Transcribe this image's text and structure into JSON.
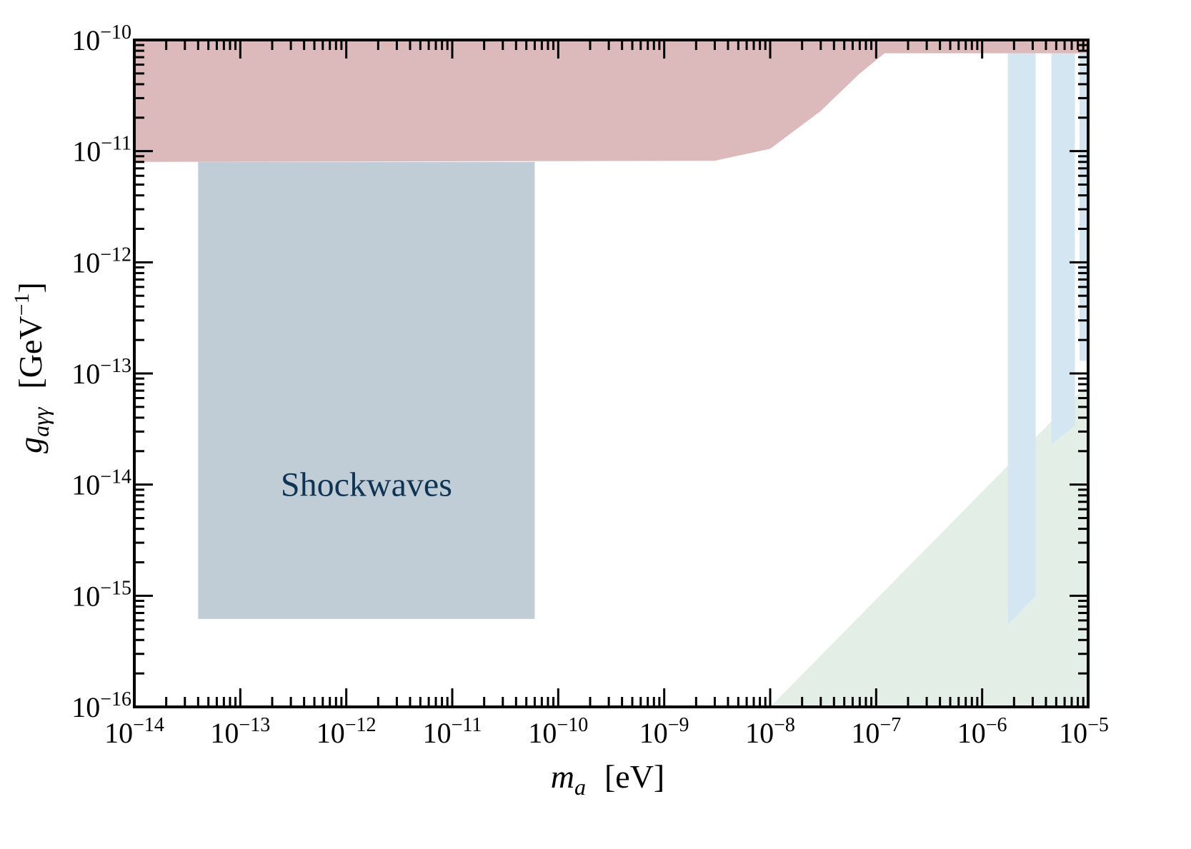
{
  "chart_data": {
    "type": "area",
    "x_scale": "log",
    "y_scale": "log",
    "xlim": [
      1e-14,
      1e-05
    ],
    "ylim": [
      1e-16,
      1e-10
    ],
    "x_tick_exponents": [
      -14,
      -13,
      -12,
      -11,
      -10,
      -9,
      -8,
      -7,
      -6,
      -5
    ],
    "y_tick_exponents": [
      -16,
      -15,
      -14,
      -13,
      -12,
      -11,
      -10
    ],
    "tick_base": "10",
    "xlabel": {
      "main": "m",
      "sub": "a",
      "unit": "[eV]"
    },
    "ylabel": {
      "main": "g",
      "sub": "aγγ",
      "unit_open": "[GeV",
      "unit_exp": "−1",
      "unit_close": "]"
    },
    "grid": false,
    "regions": [
      {
        "id": "upper-bound",
        "color": "#dcb9ba",
        "polygon": [
          [
            1e-14,
            8e-12
          ],
          [
            3e-09,
            8.2e-12
          ],
          [
            1e-08,
            1.05e-11
          ],
          [
            3e-08,
            2.3e-11
          ],
          [
            7e-08,
            5e-11
          ],
          [
            1.2e-07,
            7.6e-11
          ],
          [
            1e-05,
            7.6e-11
          ],
          [
            1e-05,
            1e-10
          ],
          [
            1e-14,
            1e-10
          ]
        ]
      },
      {
        "id": "shockwaves",
        "label": "Shockwaves",
        "label_color": "#0f3353",
        "color": "#c0ccd6",
        "polygon": [
          [
            4e-14,
            6.2e-16
          ],
          [
            6e-11,
            6.2e-16
          ],
          [
            6e-11,
            8e-12
          ],
          [
            4e-14,
            8e-12
          ]
        ]
      },
      {
        "id": "green-wedge",
        "color": "#e3eee6",
        "polygon": [
          [
            1e-08,
            1e-16
          ],
          [
            1e-05,
            1e-16
          ],
          [
            1e-05,
            8e-14
          ]
        ]
      },
      {
        "id": "blue-band-1",
        "color": "#d4e6f1",
        "polygon": [
          [
            1.75e-06,
            5.5e-16
          ],
          [
            3.2e-06,
            1e-15
          ],
          [
            3.2e-06,
            7.6e-11
          ],
          [
            1.75e-06,
            7.6e-11
          ]
        ]
      },
      {
        "id": "blue-band-2",
        "color": "#d4e6f1",
        "polygon": [
          [
            4.5e-06,
            2.3e-14
          ],
          [
            7.5e-06,
            3.4e-14
          ],
          [
            7.5e-06,
            7.6e-11
          ],
          [
            4.5e-06,
            7.6e-11
          ]
        ]
      },
      {
        "id": "blue-band-3",
        "color": "#d4e6f1",
        "polygon": [
          [
            8.3e-06,
            1.3e-13
          ],
          [
            1e-05,
            1.3e-13
          ],
          [
            1e-05,
            7.6e-11
          ],
          [
            8.3e-06,
            7.6e-11
          ]
        ]
      }
    ]
  }
}
